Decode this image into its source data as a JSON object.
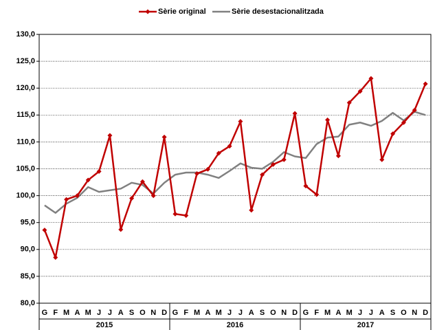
{
  "chart_data": {
    "type": "line",
    "categories": [
      "G",
      "F",
      "M",
      "A",
      "M",
      "J",
      "J",
      "A",
      "S",
      "O",
      "N",
      "D",
      "G",
      "F",
      "M",
      "A",
      "M",
      "J",
      "J",
      "A",
      "S",
      "O",
      "N",
      "D",
      "G",
      "F",
      "M",
      "A",
      "M",
      "J",
      "J",
      "A",
      "S",
      "O",
      "N",
      "D"
    ],
    "years": [
      "2015",
      "2016",
      "2017"
    ],
    "series": [
      {
        "name": "Sèrie original",
        "color": "#c00000",
        "marker": "diamond",
        "values": [
          93.6,
          88.5,
          99.3,
          100.0,
          102.9,
          104.5,
          111.2,
          93.7,
          99.5,
          102.6,
          100.0,
          110.9,
          96.6,
          96.3,
          104.1,
          104.9,
          107.9,
          109.2,
          113.8,
          97.3,
          103.9,
          105.8,
          106.7,
          115.3,
          101.8,
          100.2,
          114.1,
          107.4,
          117.3,
          119.4,
          121.8,
          106.7,
          111.5,
          113.6,
          115.9,
          120.8
        ]
      },
      {
        "name": "Sèrie desestacionalitzada",
        "color": "#808080",
        "marker": "none",
        "values": [
          98.2,
          96.8,
          98.5,
          99.6,
          101.6,
          100.7,
          101.0,
          101.3,
          102.4,
          102.0,
          100.4,
          102.4,
          103.9,
          104.3,
          104.3,
          103.9,
          103.3,
          104.6,
          106.0,
          105.2,
          105.0,
          106.3,
          108.1,
          107.3,
          107.0,
          109.6,
          110.8,
          111.0,
          113.2,
          113.6,
          113.0,
          113.9,
          115.4,
          114.0,
          115.6,
          115.0
        ]
      }
    ],
    "ylim": [
      80,
      130
    ],
    "yticks": [
      {
        "value": 80,
        "label": "80,0"
      },
      {
        "value": 85,
        "label": "85,0"
      },
      {
        "value": 90,
        "label": "90,0"
      },
      {
        "value": 95,
        "label": "95,0"
      },
      {
        "value": 100,
        "label": "100,0"
      },
      {
        "value": 105,
        "label": "105,0"
      },
      {
        "value": 110,
        "label": "110,0"
      },
      {
        "value": 115,
        "label": "115,0"
      },
      {
        "value": 120,
        "label": "120,0"
      },
      {
        "value": 125,
        "label": "125,0"
      },
      {
        "value": 130,
        "label": "130,0"
      }
    ],
    "grid": true,
    "legend": "top"
  }
}
